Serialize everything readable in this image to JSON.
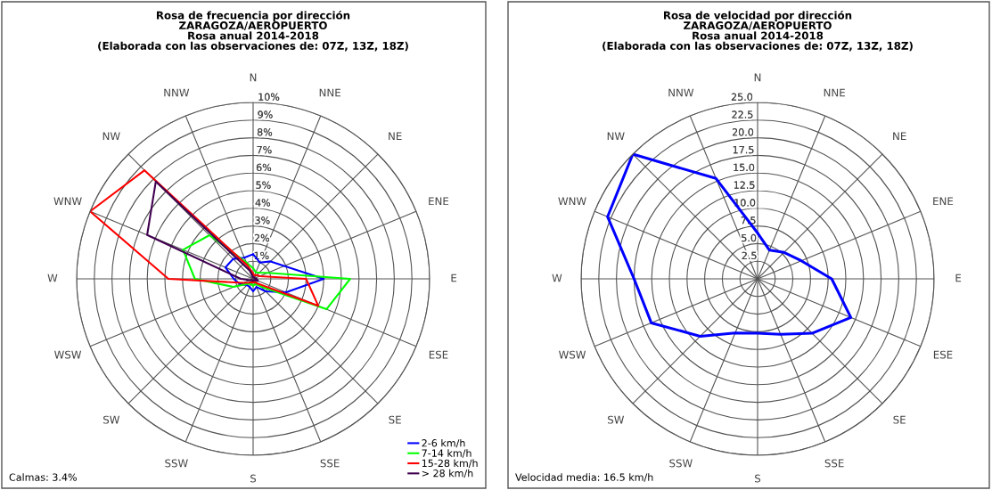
{
  "chart_data": [
    {
      "type": "radar",
      "title": "Rosa de frecuencia por dirección\nZARAGOZA/AEROPUERTO\nRosa anual 2014-2018\n(Elaborada con las observaciones de: 07Z, 13Z, 18Z)",
      "categories": [
        "N",
        "NNE",
        "NE",
        "ENE",
        "E",
        "ESE",
        "SE",
        "SSE",
        "S",
        "SSW",
        "SW",
        "WSW",
        "W",
        "WNW",
        "NW",
        "NNW"
      ],
      "series": [
        {
          "name": "2-6 km/h",
          "color": "#0000ff",
          "values": [
            1.4,
            1.0,
            1.4,
            1.9,
            4.0,
            2.0,
            1.0,
            0.5,
            0.7,
            0.5,
            0.5,
            0.8,
            1.1,
            1.7,
            1.6,
            1.3
          ]
        },
        {
          "name": "7-14 km/h",
          "color": "#00ff00",
          "values": [
            0.6,
            0.4,
            0.5,
            0.9,
            5.5,
            4.5,
            0.6,
            0.3,
            0.4,
            0.3,
            0.4,
            1.2,
            3.3,
            4.3,
            3.5,
            1.0
          ]
        },
        {
          "name": "15-28 km/h",
          "color": "#ff0000",
          "values": [
            0.3,
            0.2,
            0.3,
            0.4,
            3.0,
            4.0,
            0.4,
            0.2,
            0.2,
            0.2,
            0.3,
            0.6,
            4.8,
            10.0,
            8.7,
            0.8
          ]
        },
        {
          "name": "> 28 km/h",
          "color": "#400050",
          "values": [
            0.1,
            0.1,
            0.1,
            0.1,
            0.2,
            0.3,
            0.1,
            0.1,
            0.1,
            0.1,
            0.1,
            0.2,
            0.7,
            6.5,
            7.8,
            0.5
          ]
        }
      ],
      "ylim": [
        0,
        10
      ],
      "yticks": [
        {
          "value": 1,
          "label": "1%"
        },
        {
          "value": 2,
          "label": "2%"
        },
        {
          "value": 3,
          "label": "3%"
        },
        {
          "value": 4,
          "label": "4%"
        },
        {
          "value": 5,
          "label": "5%"
        },
        {
          "value": 6,
          "label": "6%"
        },
        {
          "value": 7,
          "label": "7%"
        },
        {
          "value": 8,
          "label": "8%"
        },
        {
          "value": 9,
          "label": "9%"
        },
        {
          "value": 10,
          "label": "10%"
        }
      ],
      "grid": true,
      "legend": "bottom right",
      "annotations": [
        "Calmas: 3.4%"
      ]
    },
    {
      "type": "radar",
      "title": "Rosa de velocidad por dirección\nZARAGOZA/AEROPUERTO\nRosa anual 2014-2018\n(Elaborada con las observaciones de: 07Z, 13Z, 18Z)",
      "categories": [
        "N",
        "NNE",
        "NE",
        "ENE",
        "E",
        "ESE",
        "SE",
        "SSE",
        "S",
        "SSW",
        "SW",
        "WSW",
        "W",
        "WNW",
        "NW",
        "NNW"
      ],
      "series": [
        {
          "color": "#0000ff",
          "values": [
            6.5,
            4.4,
            5.3,
            6.7,
            10.5,
            14.3,
            10.9,
            8.5,
            7.7,
            8.3,
            11.5,
            16.3,
            17.5,
            23.0,
            25.0,
            15.4
          ]
        }
      ],
      "ylim": [
        0,
        25
      ],
      "yticks": [
        {
          "value": 2.5,
          "label": "2.5"
        },
        {
          "value": 5,
          "label": "5.0"
        },
        {
          "value": 7.5,
          "label": "7.5"
        },
        {
          "value": 10,
          "label": "10.0"
        },
        {
          "value": 12.5,
          "label": "12.5"
        },
        {
          "value": 15,
          "label": "15.0"
        },
        {
          "value": 17.5,
          "label": "17.5"
        },
        {
          "value": 20,
          "label": "20.0"
        },
        {
          "value": 22.5,
          "label": "22.5"
        },
        {
          "value": 25,
          "label": "25.0"
        }
      ],
      "grid": true,
      "annotations": [
        "Velocidad media: 16.5 km/h"
      ]
    }
  ]
}
